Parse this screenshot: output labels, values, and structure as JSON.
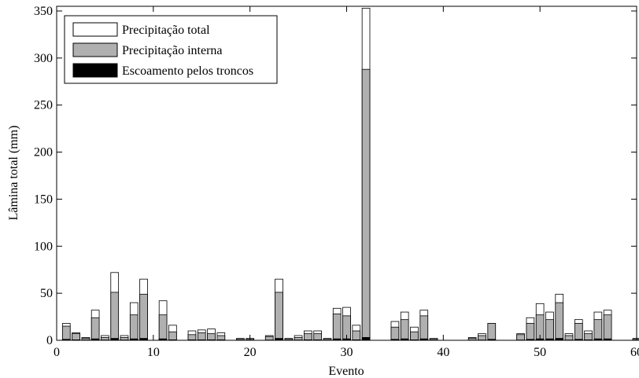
{
  "chart_data": {
    "type": "bar",
    "stacked_overlay": true,
    "xlabel": "Evento",
    "ylabel": "Lâmina total (mm)",
    "xlim": [
      0,
      60
    ],
    "ylim": [
      0,
      355
    ],
    "xticks": [
      0,
      10,
      20,
      30,
      40,
      50,
      60
    ],
    "yticks": [
      0,
      50,
      100,
      150,
      200,
      250,
      300,
      350
    ],
    "grid": false,
    "legend_position": "top-left",
    "x": [
      1,
      2,
      3,
      4,
      5,
      6,
      7,
      8,
      9,
      10,
      11,
      12,
      13,
      14,
      15,
      16,
      17,
      18,
      19,
      20,
      21,
      22,
      23,
      24,
      25,
      26,
      27,
      28,
      29,
      30,
      31,
      32,
      33,
      34,
      35,
      36,
      37,
      38,
      39,
      40,
      41,
      42,
      43,
      44,
      45,
      46,
      47,
      48,
      49,
      50,
      51,
      52,
      53,
      54,
      55,
      56,
      57,
      58,
      59,
      60
    ],
    "series": [
      {
        "name": "Precipitação total",
        "color": "#ffffff",
        "values": [
          18,
          8,
          3,
          32,
          5,
          72,
          5,
          40,
          65,
          0,
          42,
          16,
          0,
          10,
          11,
          12,
          8,
          0,
          2,
          2,
          0,
          5,
          65,
          2,
          5,
          10,
          10,
          2,
          34,
          35,
          16,
          353,
          0,
          0,
          20,
          30,
          14,
          32,
          2,
          0,
          0,
          0,
          3,
          7,
          18,
          0,
          0,
          7,
          24,
          39,
          30,
          49,
          7,
          22,
          10,
          30,
          32,
          0,
          0,
          2
        ]
      },
      {
        "name": "Precipitação interna",
        "color": "#b0b0b0",
        "values": [
          15,
          7,
          2,
          24,
          3,
          51,
          3,
          27,
          49,
          0,
          27,
          9,
          0,
          6,
          8,
          7,
          5,
          0,
          1,
          1,
          0,
          4,
          51,
          1,
          3,
          7,
          7,
          1,
          28,
          26,
          10,
          288,
          0,
          0,
          14,
          22,
          9,
          26,
          1,
          0,
          0,
          0,
          2,
          5,
          18,
          0,
          0,
          6,
          18,
          27,
          22,
          40,
          5,
          18,
          7,
          22,
          27,
          0,
          0,
          1
        ]
      },
      {
        "name": "Escoamento pelos troncos",
        "color": "#000000",
        "values": [
          1,
          0.5,
          0.3,
          1.5,
          0.3,
          2,
          0.3,
          1.5,
          2,
          0,
          1.5,
          0.5,
          0,
          0.5,
          0.5,
          0.5,
          0.5,
          0,
          0.2,
          0.2,
          0,
          0.3,
          2,
          0.2,
          0.3,
          0.5,
          0.5,
          0.2,
          1.5,
          1.5,
          0.5,
          3,
          0,
          0,
          1,
          1.5,
          0.5,
          1.5,
          0.2,
          0,
          0,
          0,
          0.2,
          0.3,
          1,
          0,
          0,
          0.3,
          1,
          1.5,
          1.5,
          2,
          0.3,
          1,
          0.5,
          1.5,
          1.5,
          0,
          0,
          0.2
        ]
      }
    ]
  }
}
